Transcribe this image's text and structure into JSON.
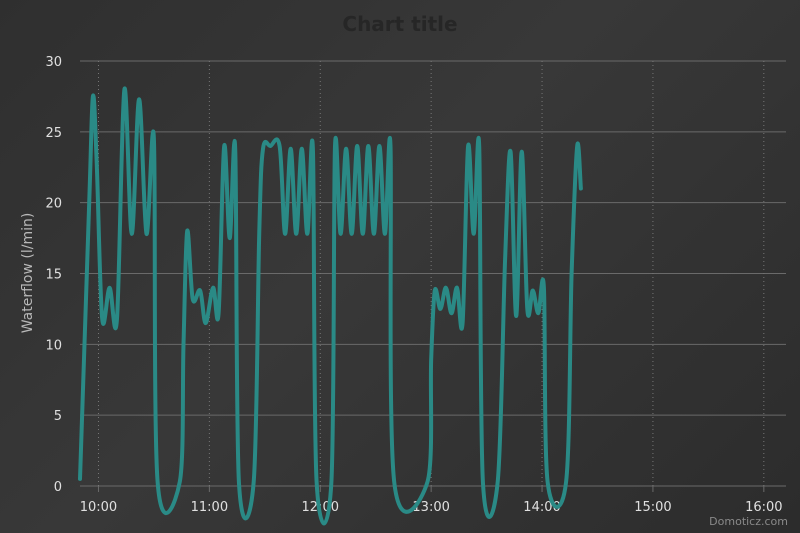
{
  "chart_data": {
    "type": "line",
    "title": "Chart title",
    "xlabel": "",
    "ylabel": "Waterflow (l/min)",
    "ylim": [
      0,
      30
    ],
    "yticks": [
      "0",
      "5",
      "10",
      "15",
      "20",
      "25",
      "30"
    ],
    "xlim": [
      "09:50",
      "16:12"
    ],
    "xticks": [
      "10:00",
      "11:00",
      "12:00",
      "13:00",
      "14:00",
      "15:00",
      "16:00"
    ],
    "grid": true,
    "legend": "none",
    "credits": "Domoticz.com",
    "colors": {
      "series": "#2a8a86",
      "grid": "#6a6a6a",
      "vgrid": "#777777"
    },
    "series": [
      {
        "name": "",
        "points": [
          [
            "09:50",
            0.5
          ],
          [
            "09:55",
            20.0
          ],
          [
            "09:57",
            27.5
          ],
          [
            "09:59",
            23.0
          ],
          [
            "10:02",
            11.8
          ],
          [
            "10:06",
            14.0
          ],
          [
            "10:10",
            11.8
          ],
          [
            "10:14",
            28.0
          ],
          [
            "10:18",
            17.8
          ],
          [
            "10:22",
            27.3
          ],
          [
            "10:26",
            17.8
          ],
          [
            "10:30",
            24.5
          ],
          [
            "10:32",
            0.3
          ],
          [
            "10:44",
            0.3
          ],
          [
            "10:46",
            10.0
          ],
          [
            "10:48",
            18.0
          ],
          [
            "10:51",
            13.2
          ],
          [
            "10:55",
            13.8
          ],
          [
            "10:58",
            11.5
          ],
          [
            "11:02",
            14.0
          ],
          [
            "11:05",
            12.2
          ],
          [
            "11:08",
            24.0
          ],
          [
            "11:11",
            17.5
          ],
          [
            "11:14",
            23.8
          ],
          [
            "11:16",
            0.3
          ],
          [
            "11:24",
            0.3
          ],
          [
            "11:27",
            18.0
          ],
          [
            "11:29",
            23.8
          ],
          [
            "11:33",
            24.0
          ],
          [
            "11:38",
            24.0
          ],
          [
            "11:41",
            17.8
          ],
          [
            "11:44",
            23.8
          ],
          [
            "11:47",
            17.8
          ],
          [
            "11:50",
            23.8
          ],
          [
            "11:53",
            17.8
          ],
          [
            "11:56",
            23.8
          ],
          [
            "11:58",
            0.3
          ],
          [
            "12:06",
            0.3
          ],
          [
            "12:08",
            24.0
          ],
          [
            "12:11",
            17.8
          ],
          [
            "12:14",
            23.8
          ],
          [
            "12:17",
            17.8
          ],
          [
            "12:20",
            24.0
          ],
          [
            "12:23",
            17.8
          ],
          [
            "12:26",
            24.0
          ],
          [
            "12:29",
            17.8
          ],
          [
            "12:32",
            24.0
          ],
          [
            "12:35",
            17.8
          ],
          [
            "12:38",
            24.0
          ],
          [
            "12:40",
            0.3
          ],
          [
            "12:58",
            0.3
          ],
          [
            "13:00",
            9.0
          ],
          [
            "13:02",
            13.8
          ],
          [
            "13:05",
            12.5
          ],
          [
            "13:08",
            14.0
          ],
          [
            "13:11",
            12.2
          ],
          [
            "13:14",
            14.0
          ],
          [
            "13:17",
            11.5
          ],
          [
            "13:20",
            24.0
          ],
          [
            "13:23",
            17.8
          ],
          [
            "13:26",
            24.0
          ],
          [
            "13:28",
            0.3
          ],
          [
            "13:36",
            0.3
          ],
          [
            "13:40",
            16.0
          ],
          [
            "13:43",
            23.6
          ],
          [
            "13:46",
            12.0
          ],
          [
            "13:49",
            23.6
          ],
          [
            "13:52",
            12.5
          ],
          [
            "13:55",
            13.8
          ],
          [
            "13:58",
            12.2
          ],
          [
            "14:01",
            14.0
          ],
          [
            "14:03",
            0.3
          ],
          [
            "14:13",
            0.3
          ],
          [
            "14:16",
            15.0
          ],
          [
            "14:19",
            24.0
          ],
          [
            "14:21",
            21.0
          ]
        ]
      }
    ]
  }
}
